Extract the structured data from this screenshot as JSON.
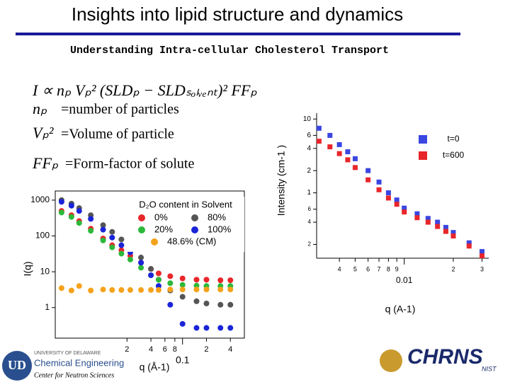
{
  "header": {
    "title": "Insights into lipid structure and dynamics",
    "subtitle": "Understanding Intra-cellular Cholesterol Transport"
  },
  "equation": {
    "formula": "I ∝ nₚ Vₚ² (SLDₚ − SLDₛₒₗᵥₑₙₜ)² FFₚ",
    "terms": [
      {
        "symbol": "nₚ",
        "text": "=number of particles"
      },
      {
        "symbol": "Vₚ²",
        "text": "=Volume of particle"
      },
      {
        "symbol": "FFₚ",
        "text": "=Form-factor  of solute"
      }
    ]
  },
  "logos": {
    "university": "UNIVERSITY OF DELAWARE",
    "department": "Chemical Engineering",
    "center": "Center for Neutron Sciences",
    "chrns": "CHRNS",
    "nist": "NIST"
  },
  "chart_data": [
    {
      "type": "scatter",
      "marker": "circle",
      "xlog": true,
      "ylog": true,
      "y_label": "I(q)",
      "x_label": "q (Å-1)",
      "legend_title": "D₂O content in Solvent",
      "x": [
        0.003,
        0.004,
        0.005,
        0.007,
        0.01,
        0.013,
        0.017,
        0.022,
        0.03,
        0.04,
        0.05,
        0.07,
        0.1,
        0.15,
        0.2,
        0.3,
        0.4
      ],
      "series": [
        {
          "name": "0%",
          "color": "#e8262a",
          "values": [
            500,
            380,
            260,
            160,
            85,
            55,
            40,
            28,
            18,
            12,
            9,
            7.5,
            6.5,
            6,
            6,
            5.8,
            5.8
          ]
        },
        {
          "name": "80%",
          "color": "#555555",
          "values": [
            1000,
            800,
            600,
            380,
            200,
            130,
            80,
            50,
            25,
            12,
            6,
            3,
            2,
            1.5,
            1.3,
            1.2,
            1.2
          ]
        },
        {
          "name": "20%",
          "color": "#2cb83a",
          "values": [
            450,
            340,
            230,
            140,
            75,
            48,
            32,
            22,
            13,
            8,
            6,
            4.8,
            4.3,
            4.1,
            4,
            4,
            4
          ]
        },
        {
          "name": "100%",
          "color": "#1a24d8",
          "values": [
            900,
            700,
            500,
            300,
            150,
            90,
            55,
            35,
            18,
            8,
            4,
            1.2,
            0.35,
            0.27,
            0.27,
            0.27,
            0.27
          ]
        },
        {
          "name": "48.6% (CM)",
          "color": "#f5a21b",
          "values": [
            3.5,
            3,
            4,
            3,
            3.2,
            3.1,
            3.1,
            3.1,
            3.1,
            3.1,
            3.1,
            3.2,
            3.2,
            3.2,
            3.2,
            3.2,
            3.2
          ]
        }
      ],
      "xlim": [
        0.0025,
        0.6
      ],
      "ylim": [
        0.14,
        1800
      ],
      "xticks": [
        {
          "value": 0.02,
          "label": "2"
        },
        {
          "value": 0.04,
          "label": "4"
        },
        {
          "value": 0.06,
          "label": "6"
        },
        {
          "value": 0.08,
          "label": "8"
        },
        0.1,
        {
          "value": 0.2,
          "label": "2"
        },
        {
          "value": 0.4,
          "label": "4"
        }
      ],
      "yticks": [
        1,
        10,
        100,
        1000
      ]
    },
    {
      "type": "scatter",
      "marker": "square",
      "xlog": true,
      "ylog": true,
      "y_label": "Intensity (cm-1 )",
      "x_label": "q (A-1)",
      "x": [
        0.003,
        0.0035,
        0.004,
        0.0045,
        0.005,
        0.006,
        0.007,
        0.008,
        0.009,
        0.01,
        0.012,
        0.014,
        0.016,
        0.018,
        0.02,
        0.025,
        0.03
      ],
      "series": [
        {
          "name": "t=0",
          "color": "#3a46e0",
          "values": [
            7.5,
            6,
            4.5,
            3.6,
            2.9,
            2.0,
            1.4,
            1.0,
            0.8,
            0.62,
            0.52,
            0.45,
            0.4,
            0.34,
            0.29,
            0.21,
            0.16
          ]
        },
        {
          "name": "t=600",
          "color": "#e8262a",
          "values": [
            5,
            4.2,
            3.4,
            2.8,
            2.2,
            1.5,
            1.1,
            0.85,
            0.7,
            0.55,
            0.46,
            0.4,
            0.35,
            0.3,
            0.26,
            0.19,
            0.14
          ]
        }
      ],
      "xlim": [
        0.0029,
        0.033
      ],
      "ylim": [
        0.13,
        12
      ],
      "xticks": [
        {
          "value": 0.004,
          "label": "4"
        },
        {
          "value": 0.005,
          "label": "5"
        },
        {
          "value": 0.006,
          "label": "6"
        },
        {
          "value": 0.007,
          "label": "7"
        },
        {
          "value": 0.008,
          "label": "8"
        },
        {
          "value": 0.009,
          "label": "9"
        },
        0.01,
        {
          "value": 0.02,
          "label": "2"
        },
        {
          "value": 0.03,
          "label": "3"
        }
      ],
      "yticks": [
        10,
        6,
        4,
        2,
        1,
        {
          "value": 0.6,
          "label": "6"
        },
        {
          "value": 0.4,
          "label": "4"
        },
        {
          "value": 0.2,
          "label": "2"
        }
      ]
    }
  ]
}
